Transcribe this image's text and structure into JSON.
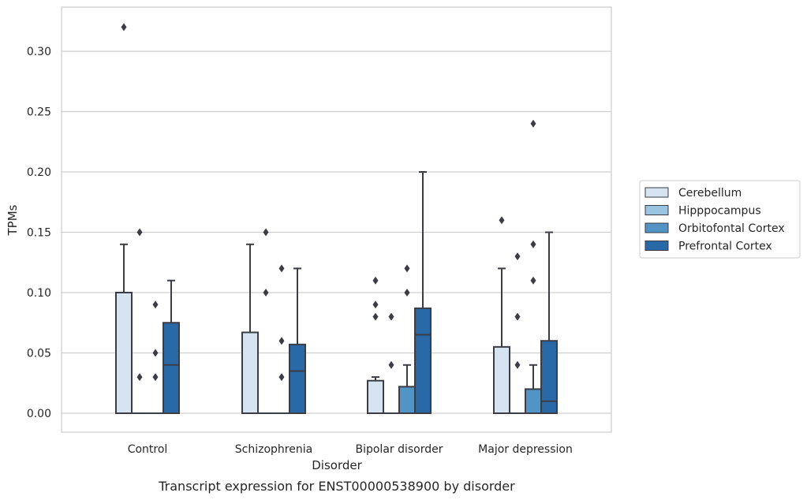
{
  "chart_data": {
    "type": "box",
    "title": "",
    "caption": "Transcript expression for ENST00000538900 by disorder",
    "xlabel": "Disorder",
    "ylabel": "TPMs",
    "ylim": [
      -0.016,
      0.337
    ],
    "yticks": [
      0.0,
      0.05,
      0.1,
      0.15,
      0.2,
      0.25,
      0.3
    ],
    "ytick_labels": [
      "0.00",
      "0.05",
      "0.10",
      "0.15",
      "0.20",
      "0.25",
      "0.30"
    ],
    "grid": true,
    "legend_position": "right",
    "categories": [
      "Control",
      "Schizophrenia",
      "Bipolar disorder",
      "Major depression"
    ],
    "series": [
      {
        "name": "Cerebellum",
        "color": "#d6e3f1",
        "boxes": [
          {
            "q1": 0.0,
            "median": 0.0,
            "q3": 0.1,
            "whisker_low": 0.0,
            "whisker_high": 0.14,
            "outliers": [
              0.32
            ]
          },
          {
            "q1": 0.0,
            "median": 0.0,
            "q3": 0.067,
            "whisker_low": 0.0,
            "whisker_high": 0.14,
            "outliers": []
          },
          {
            "q1": 0.0,
            "median": 0.0,
            "q3": 0.027,
            "whisker_low": 0.0,
            "whisker_high": 0.03,
            "outliers": [
              0.08,
              0.09,
              0.11
            ]
          },
          {
            "q1": 0.0,
            "median": 0.0,
            "q3": 0.055,
            "whisker_low": 0.0,
            "whisker_high": 0.12,
            "outliers": [
              0.16
            ]
          }
        ]
      },
      {
        "name": "Hipppocampus",
        "color": "#9bc4e0",
        "boxes": [
          {
            "q1": 0.0,
            "median": 0.0,
            "q3": 0.0,
            "whisker_low": 0.0,
            "whisker_high": 0.0,
            "outliers": [
              0.03,
              0.15
            ]
          },
          {
            "q1": 0.0,
            "median": 0.0,
            "q3": 0.0,
            "whisker_low": 0.0,
            "whisker_high": 0.0,
            "outliers": [
              0.1,
              0.15
            ]
          },
          {
            "q1": 0.0,
            "median": 0.0,
            "q3": 0.0,
            "whisker_low": 0.0,
            "whisker_high": 0.0,
            "outliers": [
              0.04,
              0.08
            ]
          },
          {
            "q1": 0.0,
            "median": 0.0,
            "q3": 0.0,
            "whisker_low": 0.0,
            "whisker_high": 0.0,
            "outliers": [
              0.04,
              0.08,
              0.13
            ]
          }
        ]
      },
      {
        "name": "Orbitofontal Cortex",
        "color": "#5294c6",
        "boxes": [
          {
            "q1": 0.0,
            "median": 0.0,
            "q3": 0.0,
            "whisker_low": 0.0,
            "whisker_high": 0.0,
            "outliers": [
              0.03,
              0.05,
              0.09
            ]
          },
          {
            "q1": 0.0,
            "median": 0.0,
            "q3": 0.0,
            "whisker_low": 0.0,
            "whisker_high": 0.0,
            "outliers": [
              0.03,
              0.06,
              0.12
            ]
          },
          {
            "q1": 0.0,
            "median": 0.0,
            "q3": 0.022,
            "whisker_low": 0.0,
            "whisker_high": 0.04,
            "outliers": [
              0.1,
              0.12
            ]
          },
          {
            "q1": 0.0,
            "median": 0.0,
            "q3": 0.02,
            "whisker_low": 0.0,
            "whisker_high": 0.04,
            "outliers": [
              0.11,
              0.14,
              0.24
            ]
          }
        ]
      },
      {
        "name": "Prefrontal Cortex",
        "color": "#2a69a8",
        "boxes": [
          {
            "q1": 0.0,
            "median": 0.04,
            "q3": 0.075,
            "whisker_low": 0.0,
            "whisker_high": 0.11,
            "outliers": []
          },
          {
            "q1": 0.0,
            "median": 0.035,
            "q3": 0.057,
            "whisker_low": 0.0,
            "whisker_high": 0.12,
            "outliers": []
          },
          {
            "q1": 0.0,
            "median": 0.065,
            "q3": 0.087,
            "whisker_low": 0.0,
            "whisker_high": 0.2,
            "outliers": []
          },
          {
            "q1": 0.0,
            "median": 0.01,
            "q3": 0.06,
            "whisker_low": 0.0,
            "whisker_high": 0.15,
            "outliers": []
          }
        ]
      }
    ],
    "style": {
      "edge_color": "#3a3d45",
      "grid_color": "#cfcfcf",
      "spine_color": "#cccccc"
    }
  }
}
